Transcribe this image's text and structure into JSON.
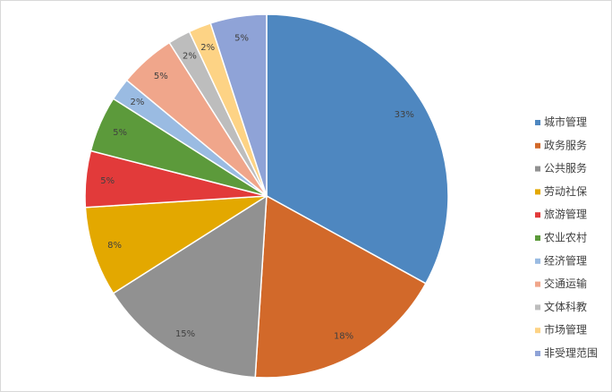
{
  "chart_data": {
    "type": "pie",
    "categories": [
      "城市管理",
      "政务服务",
      "公共服务",
      "劳动社保",
      "旅游管理",
      "农业农村",
      "经济管理",
      "交通运输",
      "文体科教",
      "市场管理",
      "非受理范围"
    ],
    "values": [
      33,
      18,
      15,
      8,
      5,
      5,
      2,
      5,
      2,
      2,
      5
    ],
    "value_labels": [
      "33%",
      "18%",
      "15%",
      "8%",
      "5%",
      "5%",
      "2%",
      "5%",
      "2%",
      "2%",
      "5%"
    ],
    "colors": [
      "#4e87c0",
      "#d2692a",
      "#919191",
      "#e3a800",
      "#e23a3a",
      "#5c9a3b",
      "#9abbe2",
      "#f0a68b",
      "#bdbdbd",
      "#fdd385",
      "#8fa3d7"
    ],
    "legend": "right"
  }
}
